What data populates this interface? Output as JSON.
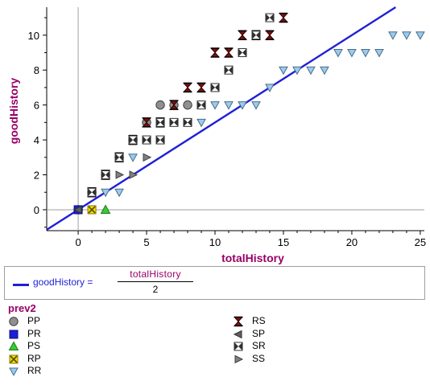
{
  "chart_data": {
    "type": "scatter",
    "xlabel": "totalHistory",
    "ylabel": "goodHistory",
    "xlim": [
      -2.3,
      25.3
    ],
    "ylim": [
      -1.2,
      11.6
    ],
    "x_ticks": [
      0,
      5,
      10,
      15,
      20,
      25
    ],
    "y_ticks": [
      0,
      2,
      4,
      6,
      8,
      10
    ],
    "grid": false,
    "zero_lines": true,
    "legend_title": "prev2",
    "legend_position": "bottom",
    "series": [
      {
        "name": "PP",
        "marker": "circle",
        "color": "#909090",
        "points": [
          [
            0,
            0
          ],
          [
            1,
            1
          ],
          [
            2,
            2
          ],
          [
            3,
            3
          ],
          [
            4,
            4
          ],
          [
            5,
            5
          ],
          [
            6,
            6
          ],
          [
            7,
            6
          ],
          [
            8,
            6
          ]
        ]
      },
      {
        "name": "PR",
        "marker": "square",
        "color": "#1f1fd6",
        "points": [
          [
            0,
            0
          ]
        ]
      },
      {
        "name": "PS",
        "marker": "triangle-up",
        "color": "#33cc33",
        "points": [
          [
            2,
            0
          ]
        ]
      },
      {
        "name": "RP",
        "marker": "x-box",
        "color": "#f2e000",
        "points": [
          [
            1,
            0
          ]
        ]
      },
      {
        "name": "RR",
        "marker": "triangle-down",
        "color": "#99ccee",
        "points": [
          [
            2,
            1
          ],
          [
            3,
            1
          ],
          [
            4,
            3
          ],
          [
            9,
            5
          ],
          [
            10,
            6
          ],
          [
            11,
            6
          ],
          [
            12,
            6
          ],
          [
            13,
            6
          ],
          [
            14,
            7
          ],
          [
            15,
            8
          ],
          [
            16,
            8
          ],
          [
            17,
            8
          ],
          [
            18,
            8
          ],
          [
            19,
            9
          ],
          [
            20,
            9
          ],
          [
            21,
            9
          ],
          [
            22,
            9
          ],
          [
            23,
            10
          ],
          [
            24,
            10
          ],
          [
            25,
            10
          ]
        ]
      },
      {
        "name": "RS",
        "marker": "hourglass",
        "color": "#7a1010",
        "points": [
          [
            1,
            1
          ],
          [
            2,
            2
          ],
          [
            3,
            3
          ],
          [
            4,
            4
          ],
          [
            5,
            5
          ],
          [
            6,
            5
          ],
          [
            7,
            6
          ],
          [
            8,
            7
          ],
          [
            9,
            7
          ],
          [
            10,
            9
          ],
          [
            11,
            9
          ],
          [
            12,
            10
          ],
          [
            13,
            10
          ],
          [
            14,
            10
          ],
          [
            15,
            11
          ]
        ]
      },
      {
        "name": "SP",
        "marker": "triangle-left",
        "color": "#606060",
        "points": [
          [
            0,
            0
          ]
        ]
      },
      {
        "name": "SR",
        "marker": "bowtie-box",
        "color": "#303030",
        "points": [
          [
            1,
            1
          ],
          [
            2,
            2
          ],
          [
            3,
            3
          ],
          [
            4,
            4
          ],
          [
            5,
            4
          ],
          [
            6,
            4
          ],
          [
            6,
            5
          ],
          [
            7,
            5
          ],
          [
            8,
            5
          ],
          [
            9,
            6
          ],
          [
            10,
            7
          ],
          [
            11,
            8
          ],
          [
            12,
            9
          ],
          [
            13,
            10
          ],
          [
            14,
            11
          ]
        ]
      },
      {
        "name": "SS",
        "marker": "triangle-right",
        "color": "#808080",
        "points": [
          [
            3,
            2
          ],
          [
            4,
            2
          ],
          [
            5,
            3
          ]
        ]
      }
    ],
    "fit_line": {
      "label": "goodHistory",
      "equals": "=",
      "numerator": "totalHistory",
      "denominator": "2",
      "slope": 0.5,
      "intercept": 0,
      "color": "#1f1fd6"
    }
  }
}
